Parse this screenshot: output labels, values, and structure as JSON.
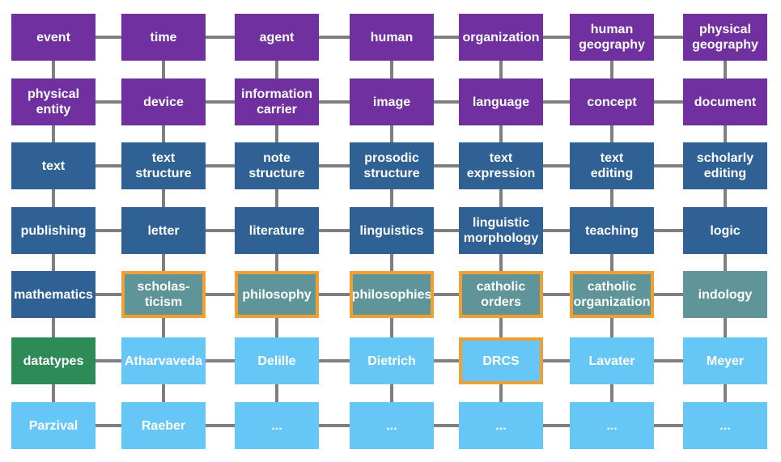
{
  "colors": {
    "purple": "#7030a0",
    "blue": "#2f6195",
    "teal": "#5f9598",
    "green": "#2e8b57",
    "light": "#66c6f6",
    "connector": "#7f7f7f",
    "highlight": "#f0a033"
  },
  "grid": [
    [
      {
        "label": "event",
        "color": "purple"
      },
      {
        "label": "time",
        "color": "purple"
      },
      {
        "label": "agent",
        "color": "purple"
      },
      {
        "label": "human",
        "color": "purple"
      },
      {
        "label": "organization",
        "color": "purple"
      },
      {
        "label": "human\ngeography",
        "color": "purple"
      },
      {
        "label": "physical\ngeography",
        "color": "purple"
      }
    ],
    [
      {
        "label": "physical\nentity",
        "color": "purple"
      },
      {
        "label": "device",
        "color": "purple"
      },
      {
        "label": "information\ncarrier",
        "color": "purple"
      },
      {
        "label": "image",
        "color": "purple"
      },
      {
        "label": "language",
        "color": "purple"
      },
      {
        "label": "concept",
        "color": "purple"
      },
      {
        "label": "document",
        "color": "purple"
      }
    ],
    [
      {
        "label": "text",
        "color": "blue"
      },
      {
        "label": "text\nstructure",
        "color": "blue"
      },
      {
        "label": "note\nstructure",
        "color": "blue"
      },
      {
        "label": "prosodic\nstructure",
        "color": "blue"
      },
      {
        "label": "text\nexpression",
        "color": "blue"
      },
      {
        "label": "text\nediting",
        "color": "blue"
      },
      {
        "label": "scholarly\nediting",
        "color": "blue"
      }
    ],
    [
      {
        "label": "publishing",
        "color": "blue"
      },
      {
        "label": "letter",
        "color": "blue"
      },
      {
        "label": "literature",
        "color": "blue"
      },
      {
        "label": "linguistics",
        "color": "blue"
      },
      {
        "label": "linguistic\nmorphology",
        "color": "blue"
      },
      {
        "label": "teaching",
        "color": "blue"
      },
      {
        "label": "logic",
        "color": "blue"
      }
    ],
    [
      {
        "label": "mathematics",
        "color": "blue"
      },
      {
        "label": "scholas-\nticism",
        "color": "teal",
        "highlighted": true
      },
      {
        "label": "philosophy",
        "color": "teal",
        "highlighted": true
      },
      {
        "label": "philosophies",
        "color": "teal",
        "highlighted": true
      },
      {
        "label": "catholic\norders",
        "color": "teal",
        "highlighted": true
      },
      {
        "label": "catholic\norganization",
        "color": "teal",
        "highlighted": true
      },
      {
        "label": "indology",
        "color": "teal"
      }
    ],
    [
      {
        "label": "datatypes",
        "color": "green"
      },
      {
        "label": "Atharvaveda",
        "color": "light"
      },
      {
        "label": "Delille",
        "color": "light"
      },
      {
        "label": "Dietrich",
        "color": "light"
      },
      {
        "label": "DRCS",
        "color": "light",
        "highlighted": true
      },
      {
        "label": "Lavater",
        "color": "light"
      },
      {
        "label": "Meyer",
        "color": "light"
      }
    ],
    [
      {
        "label": "Parzival",
        "color": "light"
      },
      {
        "label": "Raeber",
        "color": "light"
      },
      {
        "label": "...",
        "color": "light"
      },
      {
        "label": "...",
        "color": "light"
      },
      {
        "label": "...",
        "color": "light"
      },
      {
        "label": "...",
        "color": "light"
      },
      {
        "label": "..."
      }
    ]
  ]
}
